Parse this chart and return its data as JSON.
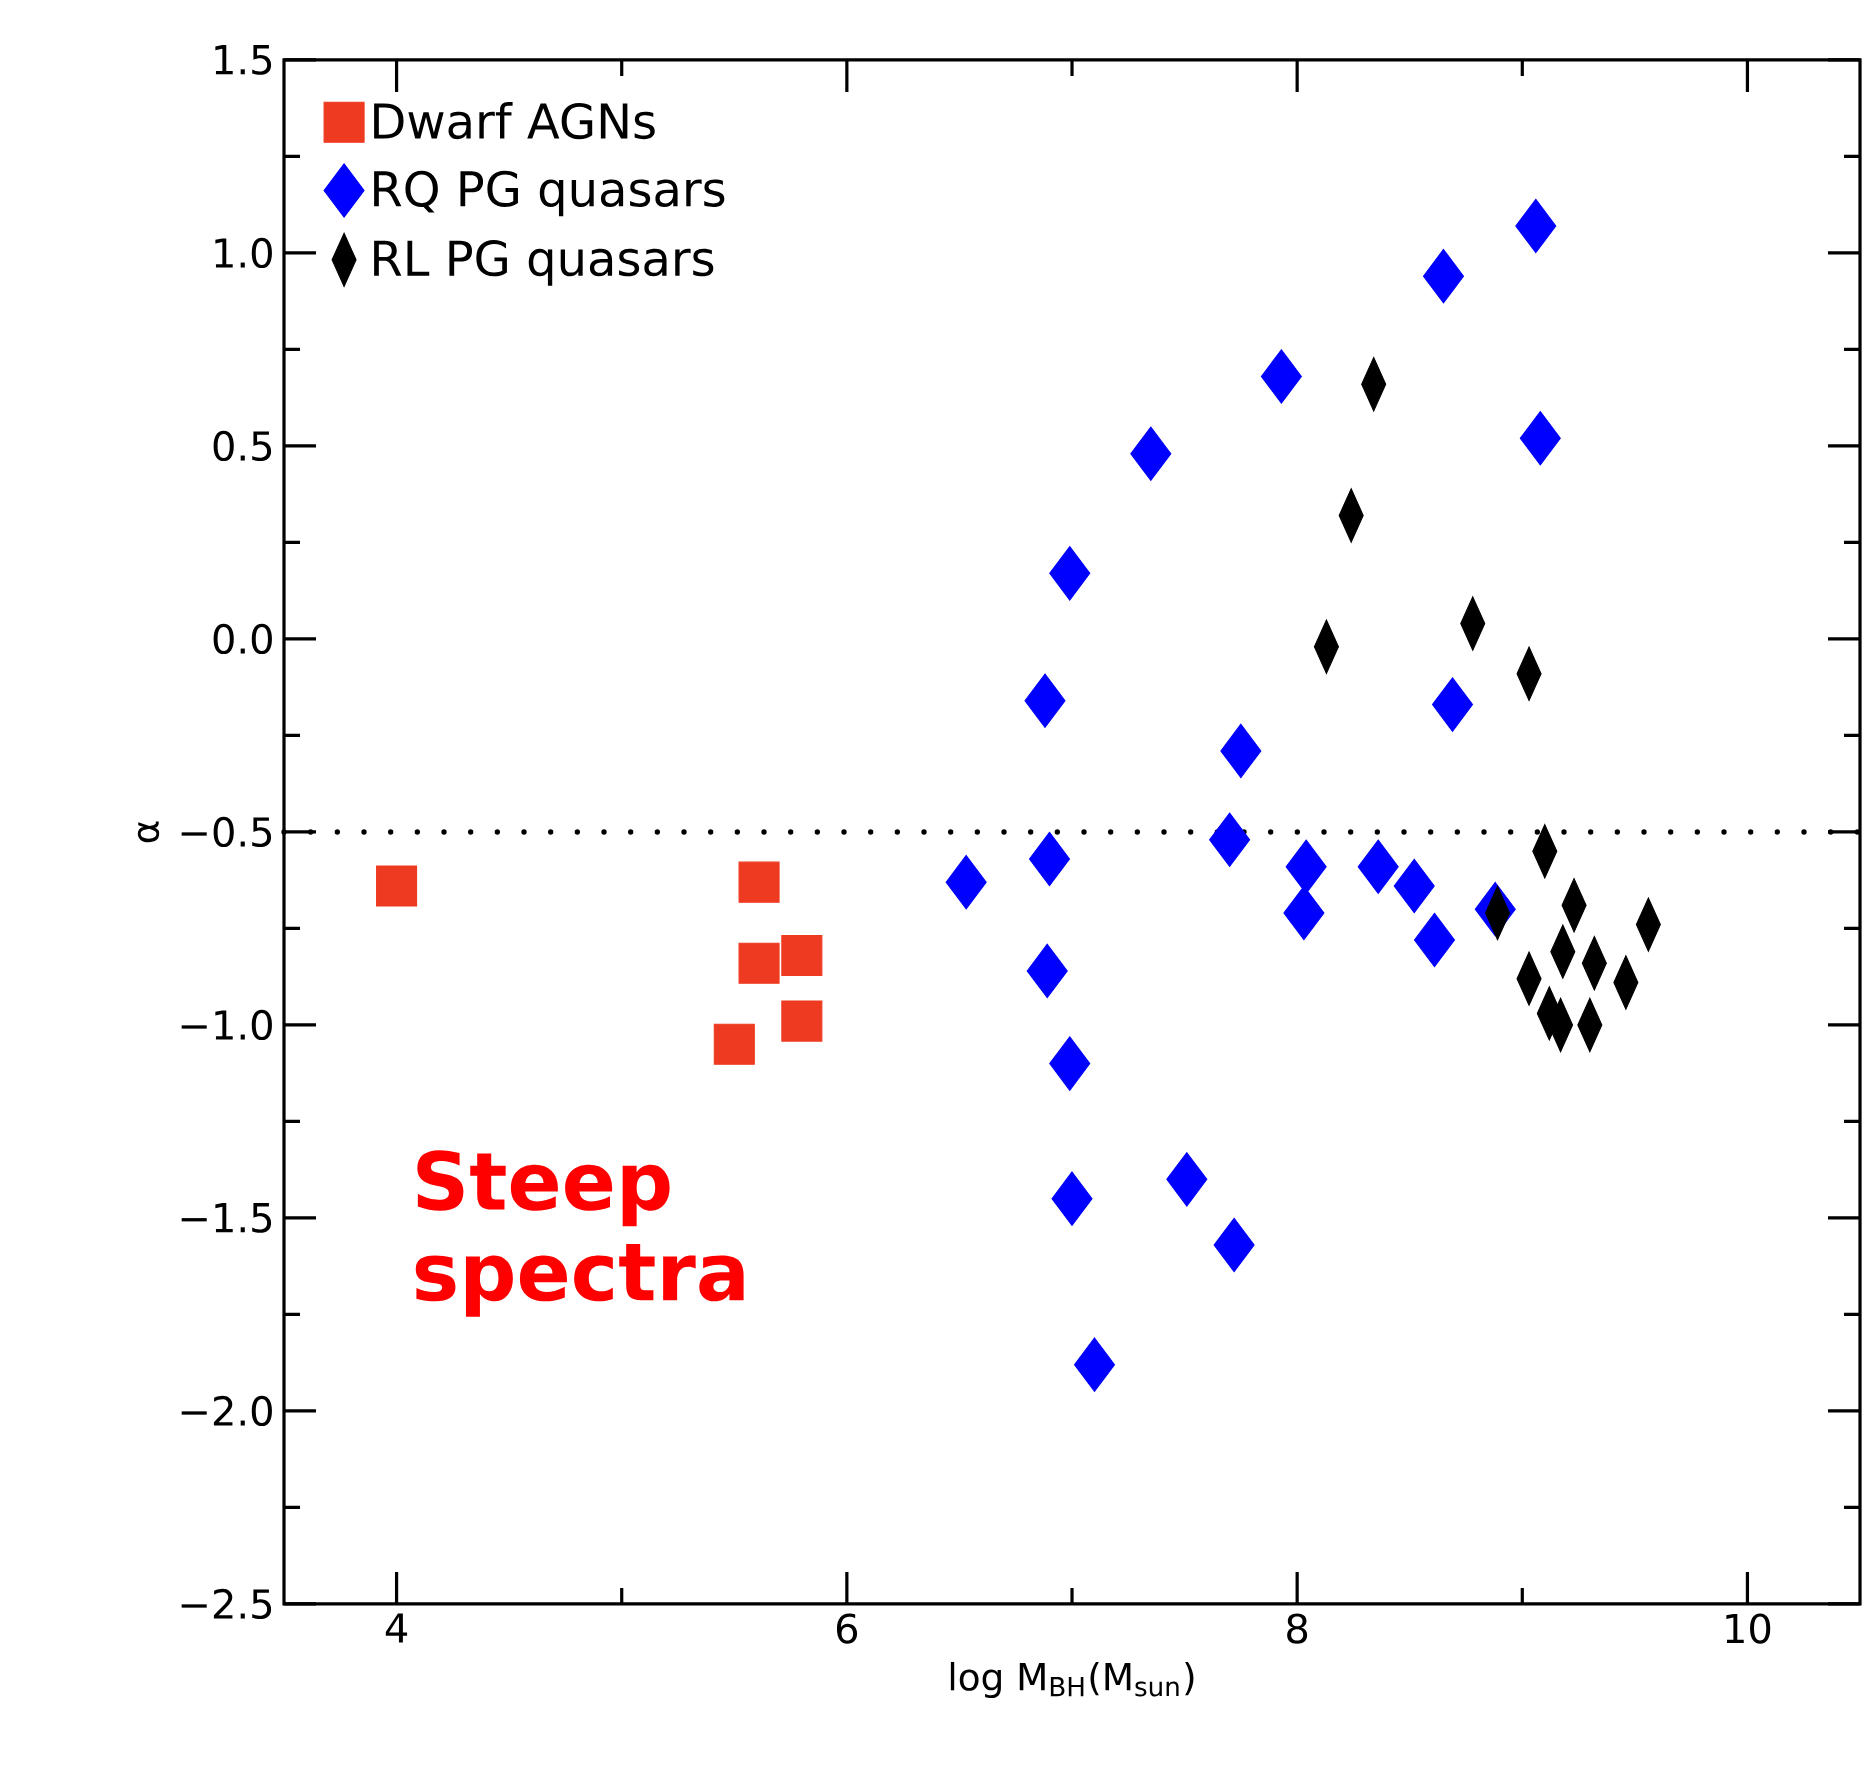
{
  "chart_data": {
    "type": "scatter",
    "xlabel": "log M$_{BH}$(M$_{sun}$)",
    "ylabel": "α",
    "xlim": [
      3.5,
      10.5
    ],
    "ylim": [
      -2.5,
      1.5
    ],
    "xticks": [
      4,
      6,
      8,
      10
    ],
    "yticks": [
      {
        "value": -2.5,
        "label": "−2.5"
      },
      {
        "value": -2.0,
        "label": "−2.0"
      },
      {
        "value": -1.5,
        "label": "−1.5"
      },
      {
        "value": -1.0,
        "label": "−1.0"
      },
      {
        "value": -0.5,
        "label": "−0.5"
      },
      {
        "value": 0.0,
        "label": "0.0"
      },
      {
        "value": 0.5,
        "label": "0.5"
      },
      {
        "value": 1.0,
        "label": "1.0"
      },
      {
        "value": 1.5,
        "label": "1.5"
      }
    ],
    "legend": "top left",
    "grid": false,
    "ref_lines": [
      {
        "axis": "y",
        "value": -0.5,
        "line_style": "dotted",
        "color": "#000000"
      }
    ],
    "annotations": [
      "**Steep spectra**"
    ],
    "series": [
      {
        "name": "Dwarf AGNs",
        "color": "#ee3a20",
        "marker": "square",
        "x": [
          4.0,
          5.61,
          5.61,
          5.8,
          5.5,
          5.8
        ],
        "values": [
          -0.64,
          -0.63,
          -0.84,
          -0.82,
          -1.05,
          -0.99
        ]
      },
      {
        "name": "RQ PG quasars",
        "color": "#0000ff",
        "marker": "diamond",
        "x": [
          6.53,
          6.88,
          6.99,
          7.35,
          7.93,
          8.65,
          8.69,
          9.06,
          9.08,
          6.9,
          6.89,
          6.99,
          7.0,
          7.1,
          7.51,
          7.72,
          7.75,
          7.7,
          8.04,
          8.03,
          8.36,
          8.52,
          8.61,
          8.88
        ],
        "values": [
          -0.63,
          -0.16,
          0.17,
          0.48,
          0.68,
          0.94,
          -0.17,
          1.07,
          0.52,
          -0.57,
          -0.86,
          -1.1,
          -1.45,
          -1.88,
          -1.4,
          -1.57,
          -0.29,
          -0.52,
          -0.59,
          -0.71,
          -0.59,
          -0.64,
          -0.78,
          -0.7
        ]
      },
      {
        "name": "RL PG quasars",
        "color": "#000000",
        "marker": "diamond",
        "x": [
          8.34,
          8.24,
          8.13,
          8.78,
          9.03,
          9.1,
          8.89,
          9.23,
          9.18,
          9.32,
          9.56,
          9.03,
          9.46,
          9.12,
          9.17,
          9.3
        ],
        "values": [
          0.66,
          0.32,
          -0.02,
          0.04,
          -0.09,
          -0.55,
          -0.71,
          -0.69,
          -0.81,
          -0.84,
          -0.74,
          -0.88,
          -0.89,
          -0.97,
          -1.0,
          -1.0
        ]
      }
    ]
  }
}
